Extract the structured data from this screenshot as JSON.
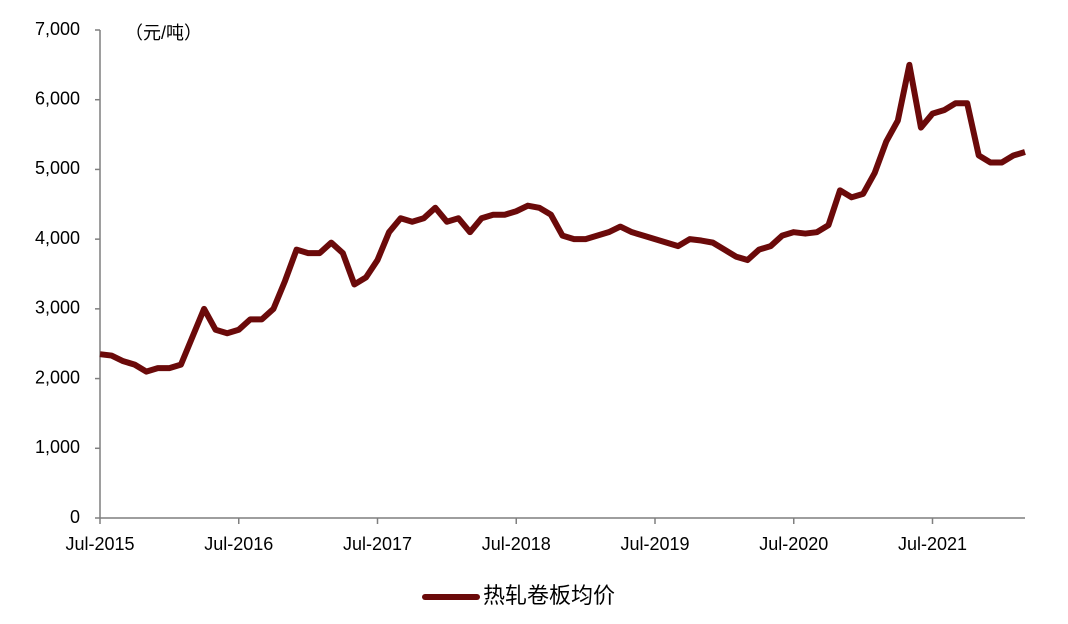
{
  "chart_data": {
    "type": "line",
    "unit_label": "（元/吨）",
    "x": [
      "2015-07",
      "2015-08",
      "2015-09",
      "2015-10",
      "2015-11",
      "2015-12",
      "2016-01",
      "2016-02",
      "2016-03",
      "2016-04",
      "2016-05",
      "2016-06",
      "2016-07",
      "2016-08",
      "2016-09",
      "2016-10",
      "2016-11",
      "2016-12",
      "2017-01",
      "2017-02",
      "2017-03",
      "2017-04",
      "2017-05",
      "2017-06",
      "2017-07",
      "2017-08",
      "2017-09",
      "2017-10",
      "2017-11",
      "2017-12",
      "2018-01",
      "2018-02",
      "2018-03",
      "2018-04",
      "2018-05",
      "2018-06",
      "2018-07",
      "2018-08",
      "2018-09",
      "2018-10",
      "2018-11",
      "2018-12",
      "2019-01",
      "2019-02",
      "2019-03",
      "2019-04",
      "2019-05",
      "2019-06",
      "2019-07",
      "2019-08",
      "2019-09",
      "2019-10",
      "2019-11",
      "2019-12",
      "2020-01",
      "2020-02",
      "2020-03",
      "2020-04",
      "2020-05",
      "2020-06",
      "2020-07",
      "2020-08",
      "2020-09",
      "2020-10",
      "2020-11",
      "2020-12",
      "2021-01",
      "2021-02",
      "2021-03",
      "2021-04",
      "2021-05",
      "2021-06",
      "2021-07",
      "2021-08",
      "2021-09",
      "2021-10",
      "2021-11",
      "2021-12",
      "2022-01",
      "2022-02",
      "2022-03"
    ],
    "series": [
      {
        "name": "热轧卷板均价",
        "color": "#6b0a0a",
        "values": [
          2350,
          2330,
          2250,
          2200,
          2100,
          2150,
          2150,
          2200,
          2600,
          3000,
          2700,
          2650,
          2700,
          2850,
          2850,
          3000,
          3400,
          3850,
          3800,
          3800,
          3950,
          3800,
          3350,
          3450,
          3700,
          4100,
          4300,
          4250,
          4300,
          4450,
          4250,
          4300,
          4100,
          4300,
          4350,
          4350,
          4400,
          4480,
          4450,
          4350,
          4050,
          4000,
          4000,
          4050,
          4100,
          4180,
          4100,
          4050,
          4000,
          3950,
          3900,
          4000,
          3980,
          3950,
          3850,
          3750,
          3700,
          3850,
          3900,
          4050,
          4100,
          4080,
          4100,
          4200,
          4700,
          4600,
          4650,
          4950,
          5400,
          5700,
          6500,
          5600,
          5800,
          5850,
          5950,
          5950,
          5200,
          5100,
          5100,
          5200,
          5250
        ]
      }
    ],
    "xlim": [
      "2015-07",
      "2022-03"
    ],
    "xticks": [
      {
        "value": "2015-07",
        "label": "Jul-2015"
      },
      {
        "value": "2016-07",
        "label": "Jul-2016"
      },
      {
        "value": "2017-07",
        "label": "Jul-2017"
      },
      {
        "value": "2018-07",
        "label": "Jul-2018"
      },
      {
        "value": "2019-07",
        "label": "Jul-2019"
      },
      {
        "value": "2020-07",
        "label": "Jul-2020"
      },
      {
        "value": "2021-07",
        "label": "Jul-2021"
      }
    ],
    "ylim": [
      0,
      7000
    ],
    "yticks": [
      0,
      {
        "value": 1000,
        "label": "1,000"
      },
      {
        "value": 2000,
        "label": "2,000"
      },
      {
        "value": 3000,
        "label": "3,000"
      },
      {
        "value": 4000,
        "label": "4,000"
      },
      {
        "value": 5000,
        "label": "5,000"
      },
      {
        "value": 6000,
        "label": "6,000"
      },
      {
        "value": 7000,
        "label": "7,000"
      }
    ],
    "legend": "bottom"
  }
}
